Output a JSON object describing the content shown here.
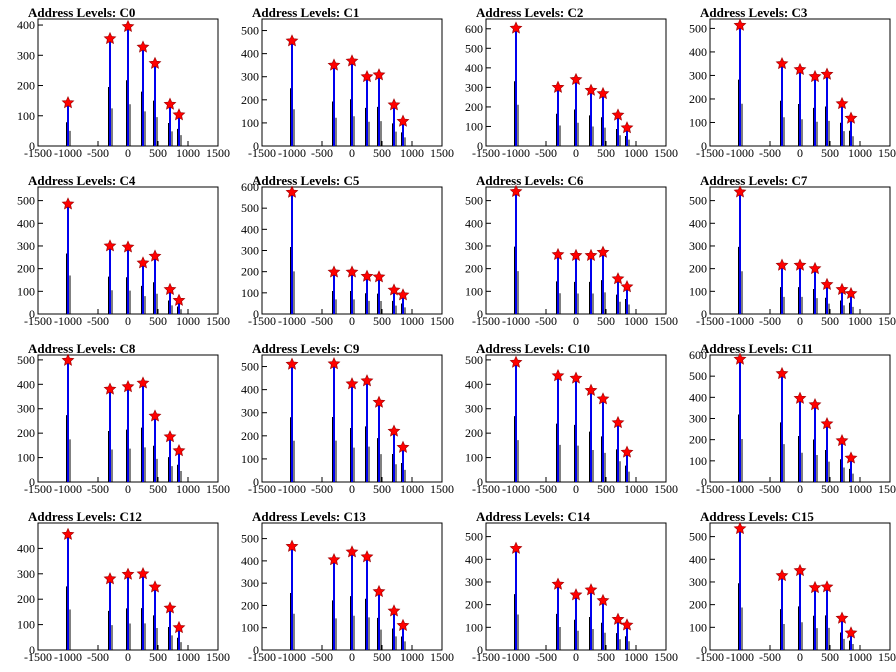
{
  "chart_data": [
    {
      "type": "bar",
      "title": "Address Levels: C0",
      "xlim": [
        -1500,
        1500
      ],
      "ylim": [
        0,
        420
      ],
      "yticks": [
        0,
        100,
        200,
        300,
        400
      ],
      "xticks": [
        -1500,
        -1000,
        -500,
        0,
        500,
        1000,
        1500
      ],
      "peaks": [
        {
          "x": -1000,
          "y": 143
        },
        {
          "x": -300,
          "y": 355
        },
        {
          "x": 0,
          "y": 395
        },
        {
          "x": 250,
          "y": 327
        },
        {
          "x": 450,
          "y": 273
        },
        {
          "x": 700,
          "y": 138
        },
        {
          "x": 850,
          "y": 103
        }
      ]
    },
    {
      "type": "bar",
      "title": "Address Levels: C1",
      "xlim": [
        -1500,
        1500
      ],
      "ylim": [
        0,
        550
      ],
      "yticks": [
        0,
        100,
        200,
        300,
        400,
        500
      ],
      "xticks": [
        -1500,
        -1000,
        -500,
        0,
        500,
        1000,
        1500
      ],
      "peaks": [
        {
          "x": -1000,
          "y": 455
        },
        {
          "x": -300,
          "y": 350
        },
        {
          "x": 0,
          "y": 368
        },
        {
          "x": 250,
          "y": 300
        },
        {
          "x": 450,
          "y": 308
        },
        {
          "x": 700,
          "y": 178
        },
        {
          "x": 850,
          "y": 107
        }
      ]
    },
    {
      "type": "bar",
      "title": "Address Levels: C2",
      "xlim": [
        -1500,
        1500
      ],
      "ylim": [
        0,
        650
      ],
      "yticks": [
        0,
        100,
        200,
        300,
        400,
        500,
        600
      ],
      "xticks": [
        -1500,
        -1000,
        -500,
        0,
        500,
        1000,
        1500
      ],
      "peaks": [
        {
          "x": -1000,
          "y": 603
        },
        {
          "x": -300,
          "y": 300
        },
        {
          "x": 0,
          "y": 340
        },
        {
          "x": 250,
          "y": 285
        },
        {
          "x": 450,
          "y": 268
        },
        {
          "x": 700,
          "y": 158
        },
        {
          "x": 850,
          "y": 93
        }
      ]
    },
    {
      "type": "bar",
      "title": "Address Levels: C3",
      "xlim": [
        -1500,
        1500
      ],
      "ylim": [
        0,
        540
      ],
      "yticks": [
        0,
        100,
        200,
        300,
        400,
        500
      ],
      "xticks": [
        -1500,
        -1000,
        -500,
        0,
        500,
        1000,
        1500
      ],
      "peaks": [
        {
          "x": -1000,
          "y": 513
        },
        {
          "x": -300,
          "y": 350
        },
        {
          "x": 0,
          "y": 325
        },
        {
          "x": 250,
          "y": 295
        },
        {
          "x": 450,
          "y": 305
        },
        {
          "x": 700,
          "y": 180
        },
        {
          "x": 850,
          "y": 118
        }
      ]
    },
    {
      "type": "bar",
      "title": "Address Levels: C4",
      "xlim": [
        -1500,
        1500
      ],
      "ylim": [
        0,
        560
      ],
      "yticks": [
        0,
        100,
        200,
        300,
        400,
        500
      ],
      "xticks": [
        -1500,
        -1000,
        -500,
        0,
        500,
        1000,
        1500
      ],
      "peaks": [
        {
          "x": -1000,
          "y": 485
        },
        {
          "x": -300,
          "y": 300
        },
        {
          "x": 0,
          "y": 295
        },
        {
          "x": 250,
          "y": 225
        },
        {
          "x": 450,
          "y": 255
        },
        {
          "x": 700,
          "y": 108
        },
        {
          "x": 850,
          "y": 60
        }
      ]
    },
    {
      "type": "bar",
      "title": "Address Levels: C5",
      "xlim": [
        -1500,
        1500
      ],
      "ylim": [
        0,
        600
      ],
      "yticks": [
        0,
        100,
        200,
        300,
        400,
        500,
        600
      ],
      "xticks": [
        -1500,
        -1000,
        -500,
        0,
        500,
        1000,
        1500
      ],
      "peaks": [
        {
          "x": -1000,
          "y": 575
        },
        {
          "x": -300,
          "y": 198
        },
        {
          "x": 0,
          "y": 198
        },
        {
          "x": 250,
          "y": 178
        },
        {
          "x": 450,
          "y": 175
        },
        {
          "x": 700,
          "y": 113
        },
        {
          "x": 850,
          "y": 90
        }
      ]
    },
    {
      "type": "bar",
      "title": "Address Levels: C6",
      "xlim": [
        -1500,
        1500
      ],
      "ylim": [
        0,
        560
      ],
      "yticks": [
        0,
        100,
        200,
        300,
        400,
        500
      ],
      "xticks": [
        -1500,
        -1000,
        -500,
        0,
        500,
        1000,
        1500
      ],
      "peaks": [
        {
          "x": -1000,
          "y": 540
        },
        {
          "x": -300,
          "y": 262
        },
        {
          "x": 0,
          "y": 258
        },
        {
          "x": 250,
          "y": 258
        },
        {
          "x": 450,
          "y": 272
        },
        {
          "x": 700,
          "y": 155
        },
        {
          "x": 850,
          "y": 120
        }
      ]
    },
    {
      "type": "bar",
      "title": "Address Levels: C7",
      "xlim": [
        -1500,
        1500
      ],
      "ylim": [
        0,
        560
      ],
      "yticks": [
        0,
        100,
        200,
        300,
        400,
        500
      ],
      "xticks": [
        -1500,
        -1000,
        -500,
        0,
        500,
        1000,
        1500
      ],
      "peaks": [
        {
          "x": -1000,
          "y": 538
        },
        {
          "x": -300,
          "y": 215
        },
        {
          "x": 0,
          "y": 215
        },
        {
          "x": 250,
          "y": 200
        },
        {
          "x": 450,
          "y": 130
        },
        {
          "x": 700,
          "y": 108
        },
        {
          "x": 850,
          "y": 90
        }
      ]
    },
    {
      "type": "bar",
      "title": "Address Levels: C8",
      "xlim": [
        -1500,
        1500
      ],
      "ylim": [
        0,
        520
      ],
      "yticks": [
        0,
        100,
        200,
        300,
        400,
        500
      ],
      "xticks": [
        -1500,
        -1000,
        -500,
        0,
        500,
        1000,
        1500
      ],
      "peaks": [
        {
          "x": -1000,
          "y": 498
        },
        {
          "x": -300,
          "y": 380
        },
        {
          "x": 0,
          "y": 390
        },
        {
          "x": 250,
          "y": 405
        },
        {
          "x": 450,
          "y": 270
        },
        {
          "x": 700,
          "y": 185
        },
        {
          "x": 850,
          "y": 128
        }
      ]
    },
    {
      "type": "bar",
      "title": "Address Levels: C9",
      "xlim": [
        -1500,
        1500
      ],
      "ylim": [
        0,
        550
      ],
      "yticks": [
        0,
        100,
        200,
        300,
        400,
        500
      ],
      "xticks": [
        -1500,
        -1000,
        -500,
        0,
        500,
        1000,
        1500
      ],
      "peaks": [
        {
          "x": -1000,
          "y": 510
        },
        {
          "x": -300,
          "y": 512
        },
        {
          "x": 0,
          "y": 425
        },
        {
          "x": 250,
          "y": 438
        },
        {
          "x": 450,
          "y": 345
        },
        {
          "x": 700,
          "y": 220
        },
        {
          "x": 850,
          "y": 150
        }
      ]
    },
    {
      "type": "bar",
      "title": "Address Levels: C10",
      "xlim": [
        -1500,
        1500
      ],
      "ylim": [
        0,
        520
      ],
      "yticks": [
        0,
        100,
        200,
        300,
        400,
        500
      ],
      "xticks": [
        -1500,
        -1000,
        -500,
        0,
        500,
        1000,
        1500
      ],
      "peaks": [
        {
          "x": -1000,
          "y": 490
        },
        {
          "x": -300,
          "y": 435
        },
        {
          "x": 0,
          "y": 425
        },
        {
          "x": 250,
          "y": 375
        },
        {
          "x": 450,
          "y": 340
        },
        {
          "x": 700,
          "y": 243
        },
        {
          "x": 850,
          "y": 122
        }
      ]
    },
    {
      "type": "bar",
      "title": "Address Levels: C11",
      "xlim": [
        -1500,
        1500
      ],
      "ylim": [
        0,
        600
      ],
      "yticks": [
        0,
        100,
        200,
        300,
        400,
        500,
        600
      ],
      "xticks": [
        -1500,
        -1000,
        -500,
        0,
        500,
        1000,
        1500
      ],
      "peaks": [
        {
          "x": -1000,
          "y": 580
        },
        {
          "x": -300,
          "y": 512
        },
        {
          "x": 0,
          "y": 395
        },
        {
          "x": 250,
          "y": 365
        },
        {
          "x": 450,
          "y": 275
        },
        {
          "x": 700,
          "y": 195
        },
        {
          "x": 850,
          "y": 113
        }
      ]
    },
    {
      "type": "bar",
      "title": "Address Levels: C12",
      "xlim": [
        -1500,
        1500
      ],
      "ylim": [
        0,
        500
      ],
      "yticks": [
        0,
        100,
        200,
        300,
        400
      ],
      "xticks": [
        -1500,
        -1000,
        -500,
        0,
        500,
        1000,
        1500
      ],
      "peaks": [
        {
          "x": -1000,
          "y": 455
        },
        {
          "x": -300,
          "y": 280
        },
        {
          "x": 0,
          "y": 298
        },
        {
          "x": 250,
          "y": 300
        },
        {
          "x": 450,
          "y": 248
        },
        {
          "x": 700,
          "y": 165
        },
        {
          "x": 850,
          "y": 88
        }
      ]
    },
    {
      "type": "bar",
      "title": "Address Levels: C13",
      "xlim": [
        -1500,
        1500
      ],
      "ylim": [
        0,
        570
      ],
      "yticks": [
        0,
        100,
        200,
        300,
        400,
        500
      ],
      "xticks": [
        -1500,
        -1000,
        -500,
        0,
        500,
        1000,
        1500
      ],
      "peaks": [
        {
          "x": -1000,
          "y": 465
        },
        {
          "x": -300,
          "y": 405
        },
        {
          "x": 0,
          "y": 440
        },
        {
          "x": 250,
          "y": 418
        },
        {
          "x": 450,
          "y": 262
        },
        {
          "x": 700,
          "y": 175
        },
        {
          "x": 850,
          "y": 110
        }
      ]
    },
    {
      "type": "bar",
      "title": "Address Levels: C14",
      "xlim": [
        -1500,
        1500
      ],
      "ylim": [
        0,
        560
      ],
      "yticks": [
        0,
        100,
        200,
        300,
        400,
        500
      ],
      "xticks": [
        -1500,
        -1000,
        -500,
        0,
        500,
        1000,
        1500
      ],
      "peaks": [
        {
          "x": -1000,
          "y": 448
        },
        {
          "x": -300,
          "y": 290
        },
        {
          "x": 0,
          "y": 243
        },
        {
          "x": 250,
          "y": 265
        },
        {
          "x": 450,
          "y": 218
        },
        {
          "x": 700,
          "y": 135
        },
        {
          "x": 850,
          "y": 110
        }
      ]
    },
    {
      "type": "bar",
      "title": "Address Levels: C15",
      "xlim": [
        -1500,
        1500
      ],
      "ylim": [
        0,
        560
      ],
      "yticks": [
        0,
        100,
        200,
        300,
        400,
        500
      ],
      "xticks": [
        -1500,
        -1000,
        -500,
        0,
        500,
        1000,
        1500
      ],
      "peaks": [
        {
          "x": -1000,
          "y": 535
        },
        {
          "x": -300,
          "y": 328
        },
        {
          "x": 0,
          "y": 350
        },
        {
          "x": 250,
          "y": 275
        },
        {
          "x": 450,
          "y": 278
        },
        {
          "x": 700,
          "y": 140
        },
        {
          "x": 850,
          "y": 75
        }
      ]
    }
  ],
  "colors": {
    "bar": "#0000ee",
    "bar_shadow": "#000000",
    "marker": "#ff0000",
    "marker_edge": "#990000",
    "axis": "#000000"
  }
}
